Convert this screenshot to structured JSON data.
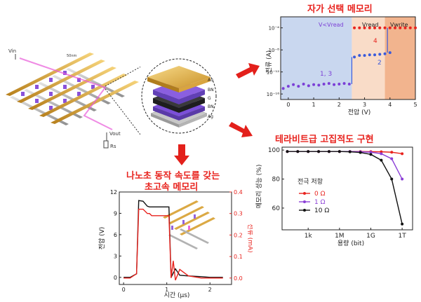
{
  "colors": {
    "accent_red": "#e8231e",
    "purple": "#7b3fd6",
    "black": "#111111",
    "gold": "#e0a830"
  },
  "crossbar": {
    "dim_label": "50nm",
    "vin_label": "Vin",
    "vout_label": "Vout",
    "rs_label": "Rs",
    "stack_layers": [
      "Au",
      "BN",
      "G",
      "BN",
      "Ag"
    ]
  },
  "selector_chart": {
    "title": "자가 선택 메모리",
    "ylabel": "전류 (A)",
    "xlabel": "전압 (V)",
    "region_labels": {
      "low": "V<Vread",
      "read": "Vread",
      "write": "Vwrite"
    },
    "curve_labels": {
      "curve_13": "1, 3",
      "curve_2": "2",
      "curve_4": "4"
    },
    "xticks": [
      "0",
      "1",
      "2",
      "3",
      "4",
      "5"
    ],
    "yticks": [
      "10⁻⁴",
      "10⁻⁸",
      "10⁻¹²",
      "10⁻¹⁶"
    ]
  },
  "capacity_chart": {
    "title": "테라비트급 고집적도 구현",
    "ylabel": "메모리 성능 (%)",
    "xlabel": "용량 (bit)",
    "legend_title": "전극 저항",
    "xticks": [
      "1k",
      "1M",
      "1G",
      "1T"
    ],
    "yticks": [
      "100",
      "80",
      "60"
    ]
  },
  "speed_chart": {
    "title_line1": "나노초 동작 속도를 갖는",
    "title_line2": "초고속 메모리",
    "ylabel_left": "전압 (V)",
    "ylabel_right": "전류 (mA)",
    "xlabel": "시간 (μs)",
    "xticks": [
      "0",
      "1",
      "2"
    ],
    "yticks_left": [
      "12",
      "9",
      "6",
      "3",
      "0"
    ],
    "yticks_right": [
      "0.4",
      "0.3",
      "0.2",
      "0.1",
      "0.0"
    ]
  },
  "chart_data": [
    {
      "type": "scatter",
      "title": "자가 선택 메모리",
      "xlabel": "전압 (V)",
      "ylabel": "전류 (A)",
      "xlim": [
        -0.3,
        5
      ],
      "ylim": [
        -17,
        -2
      ],
      "y_scale": "log10 exponent",
      "series": [
        {
          "name": "1, 3",
          "color": "#7b3fd6",
          "x": [
            -0.2,
            0,
            0.2,
            0.4,
            0.6,
            0.8,
            1.0,
            1.2,
            1.4,
            1.6,
            1.8,
            2.0,
            2.2,
            2.4
          ],
          "y": [
            -15,
            -14.6,
            -14.3,
            -14.6,
            -14.2,
            -14.5,
            -14.3,
            -14.4,
            -14.2,
            -14.1,
            -14.3,
            -14.2,
            -14.1,
            -14.2
          ]
        },
        {
          "name": "2",
          "color": "#3a5bdc",
          "x": [
            2.6,
            2.8,
            3.0,
            3.2,
            3.4,
            3.6,
            3.8,
            4.0
          ],
          "y": [
            -9.3,
            -9.0,
            -9.0,
            -8.9,
            -8.9,
            -8.8,
            -8.7,
            -8.5
          ]
        },
        {
          "name": "4",
          "color": "#e8231e",
          "x": [
            2.6,
            2.8,
            3.0,
            3.2,
            3.4,
            3.6,
            3.8,
            4.0,
            4.2,
            4.4,
            4.6,
            4.8,
            5.0
          ],
          "y": [
            -4,
            -4,
            -4,
            -4,
            -4,
            -4,
            -4,
            -4,
            -4,
            -4,
            -4,
            -4,
            -4
          ]
        }
      ]
    },
    {
      "type": "line",
      "title": "테라비트급 고집적도 구현",
      "xlabel": "용량 (bit)",
      "ylabel": "메모리 성능 (%)",
      "x_scale": "log10 exponent",
      "xlim": [
        0.5,
        13
      ],
      "ylim": [
        45,
        102
      ],
      "series": [
        {
          "name": "0 Ω",
          "color": "#e8231e",
          "x": [
            1,
            2,
            3,
            4,
            5,
            6,
            7,
            8,
            9,
            10,
            11,
            12
          ],
          "y": [
            99,
            99,
            99,
            99,
            99,
            99,
            99,
            99,
            98.9,
            98.8,
            98.5,
            97.5
          ]
        },
        {
          "name": "1 Ω",
          "color": "#8b3fd6",
          "x": [
            1,
            2,
            3,
            4,
            5,
            6,
            7,
            8,
            9,
            10,
            11,
            12
          ],
          "y": [
            99,
            99,
            99,
            99,
            99,
            99,
            99,
            98.8,
            98.5,
            97.5,
            94,
            80
          ]
        },
        {
          "name": "10 Ω",
          "color": "#111111",
          "x": [
            1,
            2,
            3,
            4,
            5,
            6,
            7,
            8,
            9,
            10,
            11,
            12
          ],
          "y": [
            99,
            99,
            99,
            99,
            99,
            99,
            98.8,
            98.3,
            97,
            93,
            80,
            49
          ]
        }
      ]
    },
    {
      "type": "line",
      "title": "나노초 동작 속도를 갖는 초고속 메모리",
      "xlabel": "시간 (μs)",
      "ylabel": "전압 (V)",
      "y2label": "전류 (mA)",
      "xlim": [
        -0.1,
        2.5
      ],
      "ylim": [
        -1,
        12
      ],
      "y2lim": [
        -0.03,
        0.4
      ],
      "series": [
        {
          "name": "전압",
          "color": "#111111",
          "axis": "left",
          "x": [
            0,
            0.15,
            0.3,
            0.35,
            0.45,
            0.55,
            0.6,
            0.62,
            1.05,
            1.1,
            1.2,
            1.3,
            1.5,
            1.8,
            2.0,
            2.3
          ],
          "y": [
            0,
            0,
            0.5,
            10.8,
            10.7,
            10.0,
            9.9,
            9.9,
            9.9,
            0,
            1.2,
            0.3,
            0.2,
            0.1,
            0,
            0
          ]
        },
        {
          "name": "전류",
          "color": "#e8231e",
          "axis": "right",
          "x": [
            0,
            0.15,
            0.3,
            0.35,
            0.45,
            0.55,
            0.6,
            0.65,
            0.8,
            1.0,
            1.05,
            1.1,
            1.15,
            1.2,
            1.3,
            1.5,
            1.8,
            2.0,
            2.3
          ],
          "y": [
            0,
            0,
            0.02,
            0.32,
            0.32,
            0.3,
            0.3,
            0.29,
            0.29,
            0.29,
            0.29,
            0.0,
            0.08,
            -0.01,
            0.04,
            0.01,
            0.0,
            0.0,
            0.0
          ]
        }
      ]
    }
  ]
}
